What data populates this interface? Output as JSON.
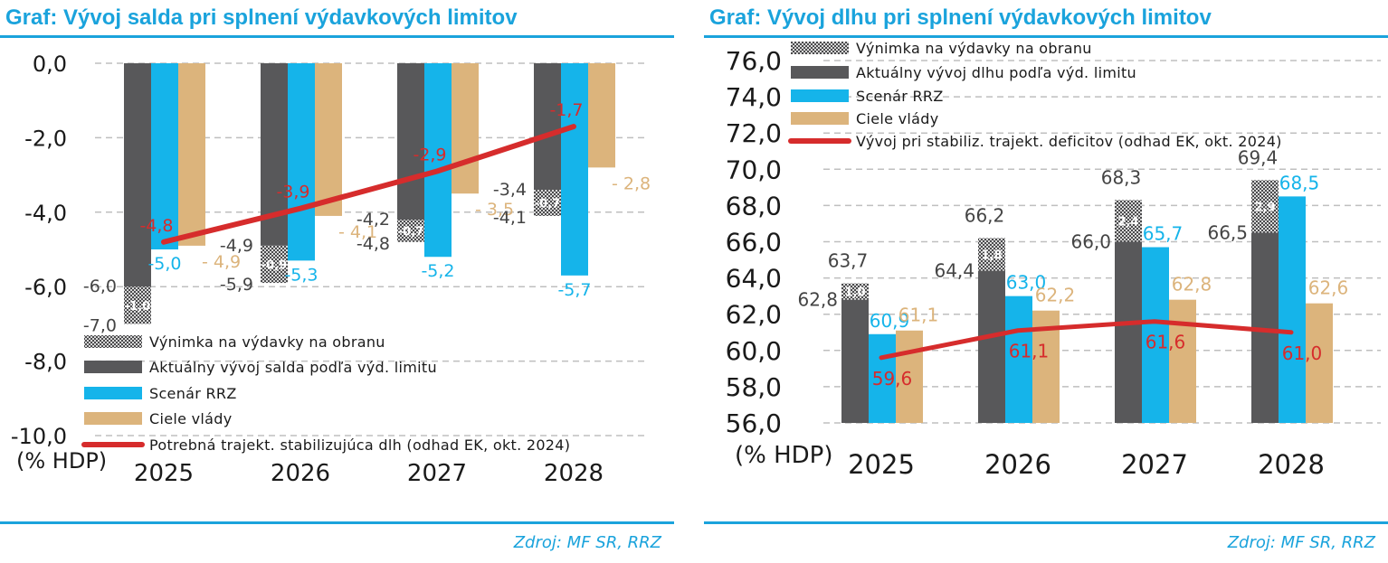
{
  "colors": {
    "accent": "#1aa3dc",
    "exception": "#8c8c8c",
    "actual": "#58585a",
    "rrz": "#15b4ea",
    "goals": "#dcb47c",
    "trajectory": "#d62c2c",
    "grid": "#bfbfbf",
    "axis_text": "#1a1a1a"
  },
  "source": "Zdroj: MF SR, RRZ",
  "chart_data": [
    {
      "type": "bar",
      "title": "Graf: Vývoj salda pri splnení výdavkových limitov",
      "unit_label": "(% HDP)",
      "categories": [
        "2025",
        "2026",
        "2027",
        "2028"
      ],
      "ylim": [
        -10,
        0
      ],
      "yticks": [
        "0,0",
        "-2,0",
        "-4,0",
        "-6,0",
        "-8,0",
        "-10,0"
      ],
      "grid": true,
      "legend_position": "bottom-right",
      "legend": [
        "Výnimka na výdavky na obranu",
        "Aktuálny vývoj salda podľa výd. limitu",
        "Scenár RRZ",
        "Ciele vlády",
        "Potrebná trajekt. stabilizujúca dlh (odhad EK, okt. 2024)"
      ],
      "series": [
        {
          "name": "Aktuálny vývoj salda podľa výd. limitu",
          "values": [
            -6.0,
            -4.9,
            -4.2,
            -3.4
          ],
          "labels": [
            "-6,0",
            "-4,9",
            "-4,2",
            "-3,4"
          ]
        },
        {
          "name": "Výnimka na výdavky na obranu",
          "values": [
            -1.0,
            -0.9,
            -0.7,
            -0.7
          ],
          "labels": [
            "-1,0",
            "-0,9",
            "-0,7",
            "-0,7"
          ]
        },
        {
          "name": "Scenár RRZ",
          "values": [
            -5.0,
            -5.3,
            -5.2,
            -5.7
          ],
          "labels": [
            "-5,0",
            "-5,3",
            "-5,2",
            "-5,7"
          ]
        },
        {
          "name": "Ciele vlády",
          "values": [
            -4.9,
            -4.1,
            -3.5,
            -2.8
          ],
          "labels": [
            "- 4,9",
            "- 4,1",
            "- 3,5",
            "- 2,8"
          ]
        },
        {
          "name": "Potrebná trajekt. stabilizujúca dlh (odhad EK, okt. 2024)",
          "values": [
            -4.8,
            -3.9,
            -2.9,
            -1.7
          ],
          "labels": [
            "-4,8",
            "-3,9",
            "-2,9",
            "-1,7"
          ]
        }
      ],
      "totals": {
        "values": [
          -7.0,
          -5.9,
          -4.8,
          -4.1
        ],
        "labels": [
          "-7,0",
          "-5,9",
          "-4,8",
          "-4,1"
        ]
      }
    },
    {
      "type": "bar",
      "title": "Graf: Vývoj dlhu pri splnení výdavkových limitov",
      "unit_label": "(% HDP)",
      "categories": [
        "2025",
        "2026",
        "2027",
        "2028"
      ],
      "ylim": [
        56,
        76
      ],
      "yticks": [
        "76,0",
        "74,0",
        "72,0",
        "70,0",
        "68,0",
        "66,0",
        "64,0",
        "62,0",
        "60,0",
        "58,0",
        "56,0"
      ],
      "grid": true,
      "legend_position": "top",
      "legend": [
        "Výnimka na výdavky na obranu",
        "Aktuálny vývoj dlhu podľa výd. limitu",
        "Scenár RRZ",
        "Ciele vlády",
        "Vývoj pri stabiliz. trajekt. deficitov (odhad EK, okt. 2024)"
      ],
      "series": [
        {
          "name": "Aktuálny vývoj dlhu podľa výd. limitu",
          "values": [
            62.8,
            64.4,
            66.0,
            66.5
          ],
          "labels": [
            "62,8",
            "64,4",
            "66,0",
            "66,5"
          ]
        },
        {
          "name": "Výnimka na výdavky na obranu",
          "values": [
            1.0,
            1.8,
            2.4,
            2.9
          ],
          "labels": [
            "1,0",
            "1,8",
            "2,4",
            "2,9"
          ]
        },
        {
          "name": "Scenár RRZ",
          "values": [
            60.9,
            63.0,
            65.7,
            68.5
          ],
          "labels": [
            "60,9",
            "63,0",
            "65,7",
            "68,5"
          ]
        },
        {
          "name": "Ciele vlády",
          "values": [
            61.1,
            62.2,
            62.8,
            62.6
          ],
          "labels": [
            "61,1",
            "62,2",
            "62,8",
            "62,6"
          ]
        },
        {
          "name": "Vývoj pri stabiliz. trajekt. deficitov (odhad EK, okt. 2024)",
          "values": [
            59.6,
            61.1,
            61.6,
            61.0
          ],
          "labels": [
            "59,6",
            "61,1",
            "61,6",
            "61,0"
          ]
        }
      ],
      "totals": {
        "values": [
          63.7,
          66.2,
          68.3,
          69.4
        ],
        "labels": [
          "63,7",
          "66,2",
          "68,3",
          "69,4"
        ]
      }
    }
  ]
}
